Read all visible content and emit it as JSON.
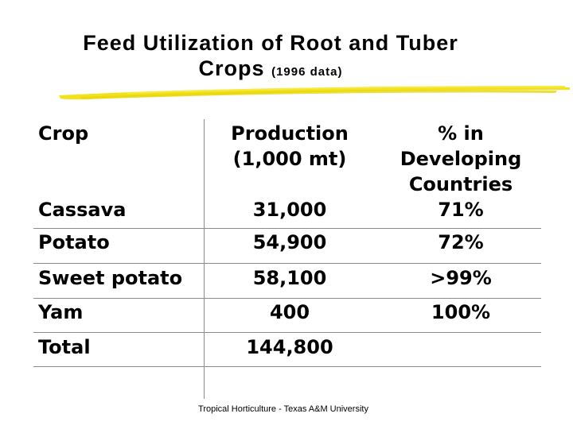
{
  "title": {
    "line1": "Feed Utilization of Root and Tuber",
    "line2": "Crops",
    "note": "(1996 data)"
  },
  "accent_color": "#F2E21A",
  "table": {
    "headers": {
      "crop": "Crop",
      "production": [
        "Production",
        "(1,000 mt)"
      ],
      "percent": [
        "% in",
        "Developing",
        "Countries"
      ]
    },
    "rows": [
      {
        "crop": "Cassava",
        "production": "31,000",
        "percent": "71%"
      },
      {
        "crop": "Potato",
        "production": "54,900",
        "percent": "72%"
      },
      {
        "crop": "Sweet potato",
        "production": "58,100",
        "percent": ">99%"
      },
      {
        "crop": "Yam",
        "production": "400",
        "percent": "100%"
      },
      {
        "crop": "Total",
        "production": "144,800",
        "percent": ""
      }
    ]
  },
  "footer": "Tropical Horticulture - Texas A&M University"
}
